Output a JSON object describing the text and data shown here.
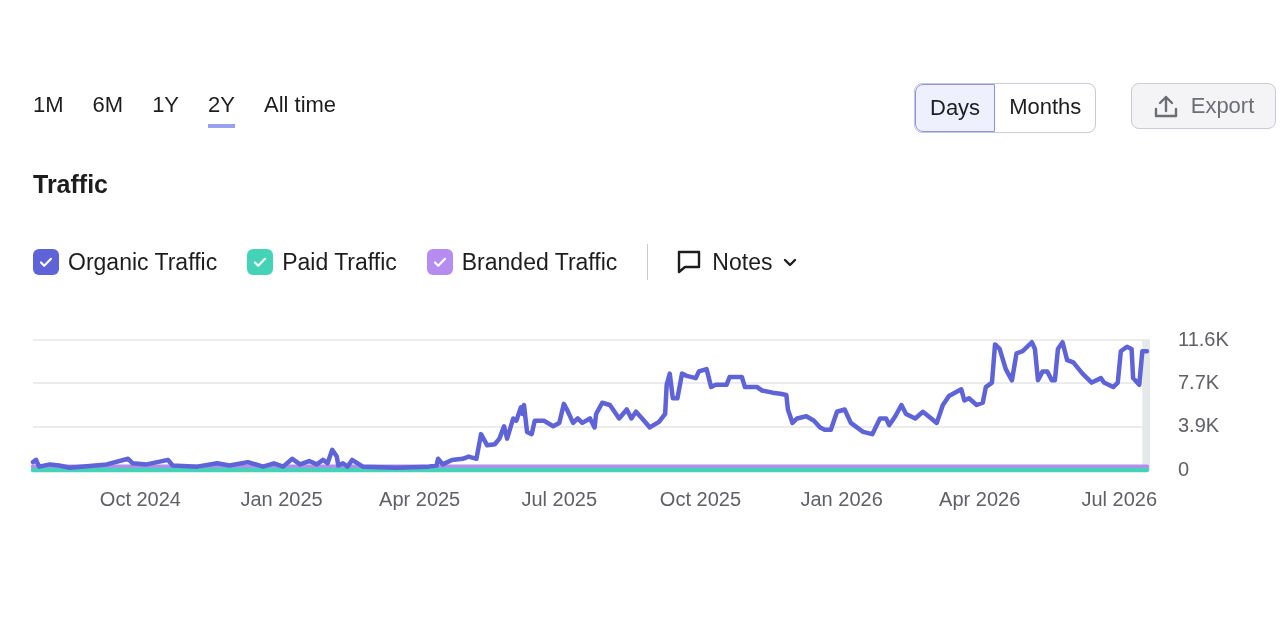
{
  "chart_data": {
    "type": "line",
    "title": "Traffic",
    "annotations": [
      "1M",
      "6M",
      "1Y",
      "2Y",
      "All time",
      "Days",
      "Months",
      "Export",
      "Notes"
    ],
    "legend": "top left",
    "grid": "y",
    "marker": "none",
    "line_style": "solid",
    "xlim": [
      "2024-07-23",
      "2026-07-21"
    ],
    "xticks": [
      {
        "value": "2024-10-01",
        "label": "Oct 2024"
      },
      {
        "value": "2025-01-01",
        "label": "Jan 2025"
      },
      {
        "value": "2025-04-01",
        "label": "Apr 2025"
      },
      {
        "value": "2025-07-01",
        "label": "Jul 2025"
      },
      {
        "value": "2025-10-01",
        "label": "Oct 2025"
      },
      {
        "value": "2026-01-01",
        "label": "Jan 2026"
      },
      {
        "value": "2026-04-01",
        "label": "Apr 2026"
      },
      {
        "value": "2026-07-01",
        "label": "Jul 2026"
      }
    ],
    "ylim": [
      0,
      11600
    ],
    "yticks": [
      {
        "value": 0,
        "label": "0"
      },
      {
        "value": 3867,
        "label": "3.9K"
      },
      {
        "value": 7733,
        "label": "7.7K"
      },
      {
        "value": 11600,
        "label": "11.6K"
      }
    ],
    "bands": [
      {
        "axis": "x",
        "from": "2026-07-16",
        "to": "2026-07-21",
        "color": "#e4e8e8"
      }
    ],
    "series": [
      {
        "name": "Organic Traffic",
        "color": "#5f63d8",
        "x": [
          "2024-07-23",
          "2024-07-25",
          "2024-07-27",
          "2024-08-03",
          "2024-08-09",
          "2024-08-16",
          "2024-09-09",
          "2024-09-23",
          "2024-09-26",
          "2024-10-05",
          "2024-10-19",
          "2024-10-22",
          "2024-11-07",
          "2024-11-20",
          "2024-11-28",
          "2024-12-10",
          "2024-12-20",
          "2024-12-27",
          "2025-01-02",
          "2025-01-08",
          "2025-01-13",
          "2025-01-19",
          "2025-01-24",
          "2025-01-28",
          "2025-01-31",
          "2025-02-03",
          "2025-02-06",
          "2025-02-07",
          "2025-02-10",
          "2025-02-13",
          "2025-02-16",
          "2025-02-23",
          "2025-03-17",
          "2025-04-07",
          "2025-04-12",
          "2025-04-13",
          "2025-04-16",
          "2025-04-22",
          "2025-04-29",
          "2025-05-03",
          "2025-05-08",
          "2025-05-11",
          "2025-05-15",
          "2025-05-20",
          "2025-05-23",
          "2025-05-26",
          "2025-05-28",
          "2025-06-01",
          "2025-06-03",
          "2025-06-06",
          "2025-06-07",
          "2025-06-08",
          "2025-06-10",
          "2025-06-13",
          "2025-06-15",
          "2025-06-21",
          "2025-06-27",
          "2025-07-01",
          "2025-07-04",
          "2025-07-06",
          "2025-07-10",
          "2025-07-13",
          "2025-07-16",
          "2025-07-21",
          "2025-07-24",
          "2025-07-25",
          "2025-07-29",
          "2025-08-03",
          "2025-08-09",
          "2025-08-14",
          "2025-08-17",
          "2025-08-20",
          "2025-08-24",
          "2025-08-29",
          "2025-09-04",
          "2025-09-08",
          "2025-09-09",
          "2025-09-11",
          "2025-09-13",
          "2025-09-16",
          "2025-09-19",
          "2025-09-22",
          "2025-09-28",
          "2025-09-30",
          "2025-10-05",
          "2025-10-08",
          "2025-10-11",
          "2025-10-18",
          "2025-10-20",
          "2025-10-28",
          "2025-10-30",
          "2025-11-07",
          "2025-11-10",
          "2025-11-17",
          "2025-11-22",
          "2025-11-26",
          "2025-11-27",
          "2025-11-30",
          "2025-12-03",
          "2025-12-09",
          "2025-12-14",
          "2025-12-18",
          "2025-12-21",
          "2025-12-25",
          "2025-12-29",
          "2026-01-03",
          "2026-01-07",
          "2026-01-15",
          "2026-01-21",
          "2026-01-26",
          "2026-01-30",
          "2026-02-01",
          "2026-02-05",
          "2026-02-09",
          "2026-02-12",
          "2026-02-18",
          "2026-02-23",
          "2026-03-04",
          "2026-03-08",
          "2026-03-12",
          "2026-03-20",
          "2026-03-22",
          "2026-03-25",
          "2026-03-30",
          "2026-04-03",
          "2026-04-05",
          "2026-04-09",
          "2026-04-11",
          "2026-04-14",
          "2026-04-18",
          "2026-04-22",
          "2026-04-25",
          "2026-04-29",
          "2026-05-05",
          "2026-05-07",
          "2026-05-09",
          "2026-05-12",
          "2026-05-15",
          "2026-05-18",
          "2026-05-20",
          "2026-05-22",
          "2026-05-25",
          "2026-05-28",
          "2026-06-01",
          "2026-06-07",
          "2026-06-13",
          "2026-06-19",
          "2026-06-21",
          "2026-06-27",
          "2026-06-30",
          "2026-07-02",
          "2026-07-06",
          "2026-07-09",
          "2026-07-10",
          "2026-07-14",
          "2026-07-16",
          "2026-07-19"
        ],
        "values": [
          700,
          900,
          300,
          500,
          400,
          200,
          500,
          1000,
          600,
          500,
          900,
          400,
          300,
          600,
          400,
          700,
          300,
          600,
          300,
          1000,
          500,
          800,
          500,
          900,
          600,
          1800,
          1200,
          400,
          600,
          300,
          900,
          300,
          200,
          300,
          400,
          1000,
          500,
          900,
          1000,
          1200,
          1000,
          3200,
          2200,
          2300,
          2800,
          3900,
          2800,
          4600,
          4400,
          5600,
          5000,
          5800,
          3400,
          3200,
          4400,
          4400,
          3900,
          4200,
          5900,
          5400,
          4200,
          4600,
          4200,
          4600,
          3800,
          5000,
          6000,
          5800,
          4600,
          5400,
          4600,
          5200,
          4600,
          3800,
          4300,
          5000,
          7600,
          8600,
          6400,
          6400,
          8600,
          8400,
          8200,
          8800,
          9000,
          7400,
          7600,
          7600,
          8300,
          8300,
          7400,
          7400,
          7100,
          6900,
          6800,
          6700,
          5400,
          4200,
          4600,
          4800,
          4400,
          3800,
          3600,
          3600,
          5200,
          5400,
          4200,
          3400,
          3200,
          4600,
          4600,
          4000,
          4800,
          5800,
          5000,
          4600,
          5200,
          4200,
          5800,
          6600,
          7200,
          6200,
          6400,
          5800,
          6000,
          7400,
          7800,
          11200,
          10800,
          9000,
          8000,
          10400,
          10600,
          11400,
          10800,
          8000,
          8800,
          8800,
          8000,
          8000,
          10800,
          11400,
          9800,
          9600,
          8600,
          7800,
          8200,
          7800,
          7400,
          7800,
          10600,
          11000,
          10800,
          8200,
          7600,
          10600,
          10600
        ]
      },
      {
        "name": "Paid Traffic",
        "color": "#45d3b8",
        "x": [
          "2024-07-23",
          "2026-07-19"
        ],
        "values": [
          0,
          0
        ]
      },
      {
        "name": "Branded Traffic",
        "color": "#b68cf0",
        "x": [
          "2024-07-23",
          "2026-07-19"
        ],
        "values": [
          300,
          300
        ]
      }
    ]
  }
}
